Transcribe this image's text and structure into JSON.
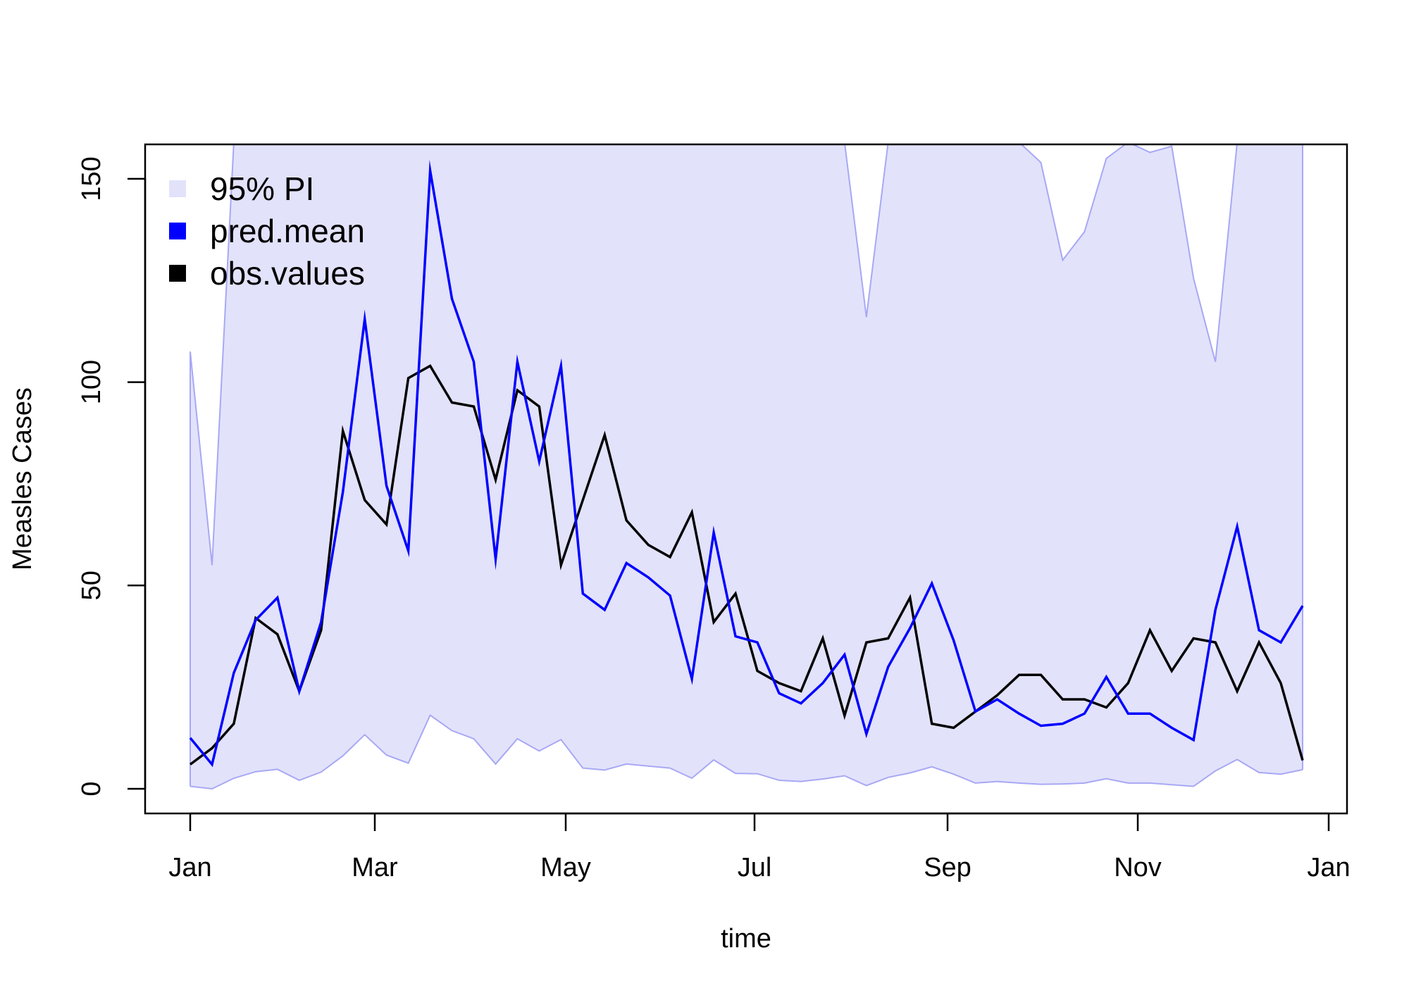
{
  "chart_data": {
    "type": "line",
    "xlabel": "time",
    "ylabel": "Measles Cases",
    "x_ticks": [
      "Jan",
      "Mar",
      "May",
      "Jul",
      "Sep",
      "Nov",
      "Jan"
    ],
    "y_ticks": [
      "0",
      "50",
      "100",
      "150"
    ],
    "ylim": [
      -6,
      159
    ],
    "x_unit": "week",
    "grid": false,
    "legend": {
      "position": "top-left",
      "entries": [
        {
          "label": "95% PI",
          "color": "#e2e2fb"
        },
        {
          "label": "pred.mean",
          "color": "#0000ff"
        },
        {
          "label": "obs.values",
          "color": "#000000"
        }
      ]
    },
    "series": [
      {
        "name": "obs.values",
        "color": "#000000",
        "values": [
          6,
          10,
          16,
          42,
          38,
          24,
          39,
          88,
          71,
          65,
          101,
          104,
          95,
          94,
          76,
          98,
          94,
          55,
          71,
          87,
          66,
          60,
          57,
          68,
          41,
          48,
          29,
          26,
          24,
          37,
          18,
          36,
          37,
          47,
          16,
          15,
          19,
          23,
          28,
          28,
          22,
          22,
          20,
          26,
          39,
          29,
          37,
          36,
          24,
          36,
          26,
          7
        ]
      },
      {
        "name": "pred.mean",
        "color": "#0000ff",
        "values": [
          12.5,
          6,
          28.5,
          41.5,
          47,
          24,
          41,
          73,
          115.5,
          74.5,
          58.5,
          152,
          120.5,
          105,
          56.5,
          105,
          80.5,
          104,
          48,
          44,
          55.5,
          52,
          47.5,
          27,
          63,
          37.5,
          36,
          23.5,
          21,
          26,
          33,
          13.5,
          30,
          39.5,
          50.5,
          36.5,
          19,
          22,
          18.5,
          15.5,
          16,
          18.5,
          27.5,
          18.5,
          18.5,
          15,
          12,
          44,
          64.5,
          39,
          36,
          45
        ]
      }
    ],
    "pi_band": {
      "name": "95% PI",
      "lower": [
        0.6,
        0,
        2.6,
        4.2,
        4.8,
        2.1,
        4.1,
        8.1,
        13.3,
        8.3,
        6.3,
        18.1,
        14.3,
        12.3,
        6.1,
        12.3,
        9.3,
        12.1,
        5.1,
        4.6,
        6.1,
        5.6,
        5.1,
        2.6,
        7.1,
        3.8,
        3.7,
        2.1,
        1.8,
        2.4,
        3.2,
        0.8,
        2.8,
        3.9,
        5.4,
        3.6,
        1.4,
        1.8,
        1.4,
        1.1,
        1.2,
        1.4,
        2.5,
        1.4,
        1.4,
        1,
        0.6,
        4.4,
        7.2,
        4,
        3.6,
        4.7
      ],
      "upper": [
        107.5,
        55,
        159,
        159,
        159,
        159,
        159,
        159,
        159,
        159,
        159,
        159,
        159,
        159,
        159,
        159,
        159,
        159,
        159,
        159,
        159,
        159,
        159,
        159,
        159,
        159,
        159,
        159,
        159,
        159,
        159,
        116,
        159,
        159,
        159,
        159,
        159,
        159,
        159,
        154,
        130,
        137,
        155,
        159,
        156.5,
        158,
        125.5,
        105,
        159,
        159,
        159,
        159
      ]
    }
  }
}
